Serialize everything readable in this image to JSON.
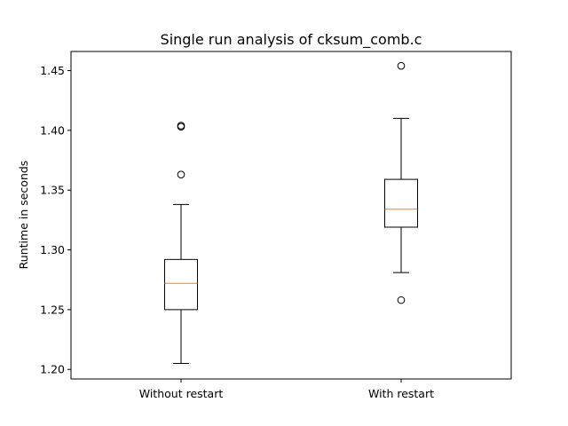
{
  "chart_data": {
    "type": "box",
    "title": "Single run analysis of cksum_comb.c",
    "xlabel": "",
    "ylabel": "Runtime in seconds",
    "ylim": [
      1.192,
      1.466
    ],
    "yticks": [
      1.2,
      1.25,
      1.3,
      1.35,
      1.4,
      1.45
    ],
    "ytick_labels": [
      "1.20",
      "1.25",
      "1.30",
      "1.35",
      "1.40",
      "1.45"
    ],
    "categories": [
      "Without restart",
      "With restart"
    ],
    "boxes": [
      {
        "category": "Without restart",
        "whisker_low": 1.205,
        "q1": 1.25,
        "median": 1.272,
        "q3": 1.292,
        "whisker_high": 1.338,
        "outliers": [
          1.363,
          1.403,
          1.404
        ]
      },
      {
        "category": "With restart",
        "whisker_low": 1.281,
        "q1": 1.319,
        "median": 1.334,
        "q3": 1.359,
        "whisker_high": 1.41,
        "outliers": [
          1.258,
          1.454
        ]
      }
    ],
    "grid": false,
    "colors": {
      "box": "#000000",
      "median": "#ff7f0e",
      "outlier": "#000000"
    }
  }
}
